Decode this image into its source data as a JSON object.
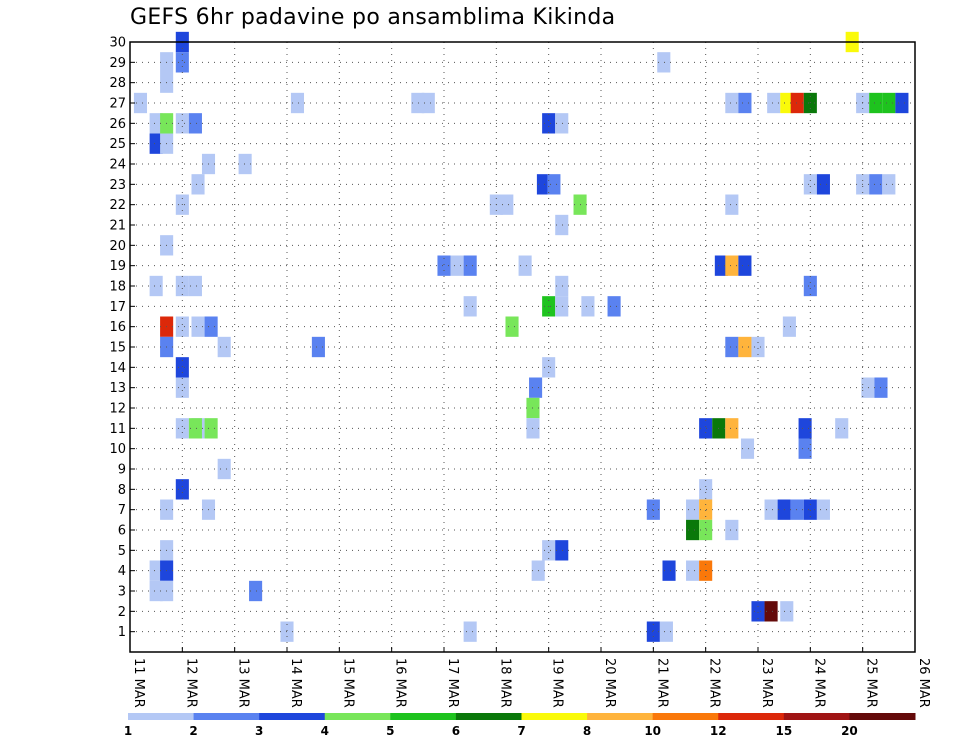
{
  "chart_data": {
    "type": "heatmap",
    "title": "GEFS 6hr padavine po ansamblima Kikinda",
    "xlabel": "",
    "ylabel": "",
    "x_ticks": [
      {
        "day": 11,
        "label": "11 MAR"
      },
      {
        "day": 12,
        "label": "12 MAR"
      },
      {
        "day": 13,
        "label": "13 MAR"
      },
      {
        "day": 14,
        "label": "14 MAR"
      },
      {
        "day": 15,
        "label": "15 MAR"
      },
      {
        "day": 16,
        "label": "16 MAR"
      },
      {
        "day": 17,
        "label": "17 MAR"
      },
      {
        "day": 18,
        "label": "18 MAR"
      },
      {
        "day": 19,
        "label": "19 MAR"
      },
      {
        "day": 20,
        "label": "20 MAR"
      },
      {
        "day": 21,
        "label": "21 MAR"
      },
      {
        "day": 22,
        "label": "22 MAR"
      },
      {
        "day": 23,
        "label": "23 MAR"
      },
      {
        "day": 24,
        "label": "24 MAR"
      },
      {
        "day": 25,
        "label": "25 MAR"
      },
      {
        "day": 26,
        "label": "26 MAR"
      }
    ],
    "x_range": [
      11,
      26
    ],
    "y_range": [
      0,
      30
    ],
    "y_ticks": [
      1,
      2,
      3,
      4,
      5,
      6,
      7,
      8,
      9,
      10,
      11,
      12,
      13,
      14,
      15,
      16,
      17,
      18,
      19,
      20,
      21,
      22,
      23,
      24,
      25,
      26,
      27,
      28,
      29,
      30
    ],
    "grid": true,
    "legend_placement": "bottom",
    "legend_labels": [
      "1",
      "2",
      "3",
      "4",
      "5",
      "6",
      "7",
      "8",
      "10",
      "12",
      "15",
      "20"
    ],
    "colors": [
      "#b4c8f5",
      "#5a82f0",
      "#1e46dc",
      "#78e65a",
      "#1ec31e",
      "#0a780a",
      "#fafa0a",
      "#ffb43c",
      "#fa780a",
      "#dc280a",
      "#a01414",
      "#640a0a"
    ],
    "cells": [
      [
        12.0,
        30,
        2
      ],
      [
        24.8,
        30,
        6
      ],
      [
        11.7,
        29,
        0
      ],
      [
        12.0,
        29,
        1
      ],
      [
        21.2,
        29,
        0
      ],
      [
        11.7,
        28,
        0
      ],
      [
        11.2,
        27,
        0
      ],
      [
        14.2,
        27,
        0
      ],
      [
        16.5,
        27,
        0
      ],
      [
        16.7,
        27,
        0
      ],
      [
        22.5,
        27,
        0
      ],
      [
        22.75,
        27,
        1
      ],
      [
        23.3,
        27,
        0
      ],
      [
        23.55,
        27,
        6
      ],
      [
        23.75,
        27,
        9
      ],
      [
        24.0,
        27,
        5
      ],
      [
        25.0,
        27,
        0
      ],
      [
        25.25,
        27,
        4
      ],
      [
        25.5,
        27,
        4
      ],
      [
        25.75,
        27,
        2
      ],
      [
        11.5,
        26,
        0
      ],
      [
        11.7,
        26,
        3
      ],
      [
        12.0,
        26,
        0
      ],
      [
        12.25,
        26,
        1
      ],
      [
        19.0,
        26,
        2
      ],
      [
        19.25,
        26,
        0
      ],
      [
        11.5,
        25,
        2
      ],
      [
        11.7,
        25,
        0
      ],
      [
        12.5,
        24,
        0
      ],
      [
        13.2,
        24,
        0
      ],
      [
        12.3,
        23,
        0
      ],
      [
        18.9,
        23,
        2
      ],
      [
        19.1,
        23,
        1
      ],
      [
        24.0,
        23,
        0
      ],
      [
        24.25,
        23,
        2
      ],
      [
        25.0,
        23,
        0
      ],
      [
        25.25,
        23,
        1
      ],
      [
        25.5,
        23,
        0
      ],
      [
        12.0,
        22,
        0
      ],
      [
        18.0,
        22,
        0
      ],
      [
        18.2,
        22,
        0
      ],
      [
        19.6,
        22,
        3
      ],
      [
        22.5,
        22,
        0
      ],
      [
        19.25,
        21,
        0
      ],
      [
        11.7,
        20,
        0
      ],
      [
        17.0,
        19,
        1
      ],
      [
        17.25,
        19,
        0
      ],
      [
        17.5,
        19,
        1
      ],
      [
        18.55,
        19,
        0
      ],
      [
        22.3,
        19,
        2
      ],
      [
        22.5,
        19,
        7
      ],
      [
        22.75,
        19,
        2
      ],
      [
        11.5,
        18,
        0
      ],
      [
        12.0,
        18,
        0
      ],
      [
        12.25,
        18,
        0
      ],
      [
        19.25,
        18,
        0
      ],
      [
        24.0,
        18,
        1
      ],
      [
        17.5,
        17,
        0
      ],
      [
        19.0,
        17,
        4
      ],
      [
        19.25,
        17,
        0
      ],
      [
        19.75,
        17,
        0
      ],
      [
        20.25,
        17,
        1
      ],
      [
        11.7,
        16,
        9
      ],
      [
        12.3,
        16,
        0
      ],
      [
        12.55,
        16,
        1
      ],
      [
        12.0,
        16,
        0
      ],
      [
        18.3,
        16,
        3
      ],
      [
        23.6,
        16,
        0
      ],
      [
        11.7,
        15,
        1
      ],
      [
        12.8,
        15,
        0
      ],
      [
        14.6,
        15,
        1
      ],
      [
        22.5,
        15,
        1
      ],
      [
        22.75,
        15,
        7
      ],
      [
        23.0,
        15,
        0
      ],
      [
        12.0,
        14,
        2
      ],
      [
        19.0,
        14,
        0
      ],
      [
        12.0,
        13,
        0
      ],
      [
        18.75,
        13,
        1
      ],
      [
        25.1,
        13,
        0
      ],
      [
        25.35,
        13,
        1
      ],
      [
        18.7,
        12,
        3
      ],
      [
        12.3,
        11,
        0
      ],
      [
        12.55,
        11,
        3
      ],
      [
        12.0,
        11,
        0
      ],
      [
        12.25,
        11,
        3
      ],
      [
        18.7,
        11,
        0
      ],
      [
        22.0,
        11,
        2
      ],
      [
        22.25,
        11,
        5
      ],
      [
        22.5,
        11,
        7
      ],
      [
        23.9,
        11,
        2
      ],
      [
        24.6,
        11,
        0
      ],
      [
        22.8,
        10,
        0
      ],
      [
        23.9,
        10,
        1
      ],
      [
        12.8,
        9,
        0
      ],
      [
        12.0,
        8,
        2
      ],
      [
        22.0,
        8,
        0
      ],
      [
        11.7,
        7,
        0
      ],
      [
        12.5,
        7,
        0
      ],
      [
        21.0,
        7,
        1
      ],
      [
        21.75,
        7,
        0
      ],
      [
        22.0,
        7,
        7
      ],
      [
        23.25,
        7,
        0
      ],
      [
        23.5,
        7,
        2
      ],
      [
        23.75,
        7,
        1
      ],
      [
        24.0,
        7,
        2
      ],
      [
        24.25,
        7,
        0
      ],
      [
        21.75,
        6,
        5
      ],
      [
        22.0,
        6,
        3
      ],
      [
        22.5,
        6,
        0
      ],
      [
        11.7,
        5,
        0
      ],
      [
        19.0,
        5,
        0
      ],
      [
        19.25,
        5,
        2
      ],
      [
        11.5,
        4,
        0
      ],
      [
        11.7,
        4,
        2
      ],
      [
        18.8,
        4,
        0
      ],
      [
        21.3,
        4,
        2
      ],
      [
        21.75,
        4,
        0
      ],
      [
        22.0,
        4,
        8
      ],
      [
        11.5,
        3,
        0
      ],
      [
        11.7,
        3,
        0
      ],
      [
        13.4,
        3,
        1
      ],
      [
        23.0,
        2,
        2
      ],
      [
        23.25,
        2,
        11
      ],
      [
        23.55,
        2,
        0
      ],
      [
        14.0,
        1,
        0
      ],
      [
        17.5,
        1,
        0
      ],
      [
        21.0,
        1,
        2
      ],
      [
        21.25,
        1,
        0
      ]
    ]
  }
}
